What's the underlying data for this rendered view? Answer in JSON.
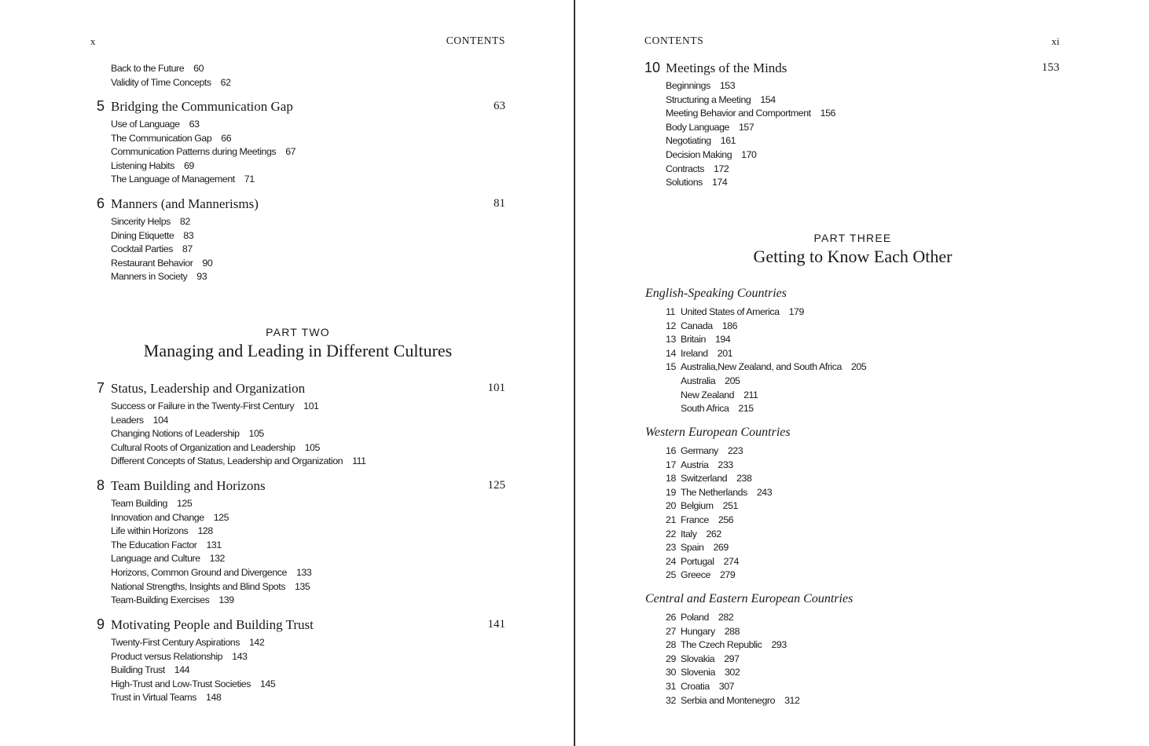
{
  "left_page": {
    "folio": "x",
    "running_head": "CONTENTS",
    "continued_items": [
      {
        "title": "Back to the Future",
        "page": "60"
      },
      {
        "title": "Validity of Time Concepts",
        "page": "62"
      }
    ],
    "chapters_a": [
      {
        "number": "5",
        "title": "Bridging the Communication Gap",
        "page": "63",
        "items": [
          {
            "title": "Use of Language",
            "page": "63"
          },
          {
            "title": "The Communication Gap",
            "page": "66"
          },
          {
            "title": "Communication Patterns during Meetings",
            "page": "67"
          },
          {
            "title": "Listening Habits",
            "page": "69"
          },
          {
            "title": "The Language of Management",
            "page": "71"
          }
        ]
      },
      {
        "number": "6",
        "title": "Manners (and Mannerisms)",
        "page": "81",
        "items": [
          {
            "title": "Sincerity Helps",
            "page": "82"
          },
          {
            "title": "Dining Etiquette",
            "page": "83"
          },
          {
            "title": "Cocktail Parties",
            "page": "87"
          },
          {
            "title": "Restaurant Behavior",
            "page": "90"
          },
          {
            "title": "Manners in Society",
            "page": "93"
          }
        ]
      }
    ],
    "part": {
      "label": "PART TWO",
      "title": "Managing and Leading in Different Cultures"
    },
    "chapters_b": [
      {
        "number": "7",
        "title": "Status, Leadership and Organization",
        "page": "101",
        "items": [
          {
            "title": "Success or Failure in the Twenty-First Century",
            "page": "101"
          },
          {
            "title": "Leaders",
            "page": "104"
          },
          {
            "title": "Changing Notions of Leadership",
            "page": "105"
          },
          {
            "title": "Cultural Roots of Organization and Leadership",
            "page": "105"
          },
          {
            "title": "Different Concepts of Status, Leadership and Organization",
            "page": "111"
          }
        ]
      },
      {
        "number": "8",
        "title": "Team Building and Horizons",
        "page": "125",
        "items": [
          {
            "title": "Team Building",
            "page": "125"
          },
          {
            "title": "Innovation and Change",
            "page": "125"
          },
          {
            "title": "Life within Horizons",
            "page": "128"
          },
          {
            "title": "The Education Factor",
            "page": "131"
          },
          {
            "title": "Language and Culture",
            "page": "132"
          },
          {
            "title": "Horizons, Common Ground and Divergence",
            "page": "133"
          },
          {
            "title": "National Strengths, Insights and Blind Spots",
            "page": "135"
          },
          {
            "title": "Team-Building Exercises",
            "page": "139"
          }
        ]
      },
      {
        "number": "9",
        "title": "Motivating People and Building Trust",
        "page": "141",
        "items": [
          {
            "title": "Twenty-First Century Aspirations",
            "page": "142"
          },
          {
            "title": "Product versus Relationship",
            "page": "143"
          },
          {
            "title": "Building Trust",
            "page": "144"
          },
          {
            "title": "High-Trust and Low-Trust Societies",
            "page": "145"
          },
          {
            "title": "Trust in Virtual Teams",
            "page": "148"
          }
        ]
      }
    ]
  },
  "right_page": {
    "folio": "xi",
    "running_head": "CONTENTS",
    "chapter": {
      "number": "10",
      "title": "Meetings of the Minds",
      "page": "153",
      "items": [
        {
          "title": "Beginnings",
          "page": "153"
        },
        {
          "title": "Structuring a Meeting",
          "page": "154"
        },
        {
          "title": "Meeting Behavior and Comportment",
          "page": "156"
        },
        {
          "title": "Body Language",
          "page": "157"
        },
        {
          "title": "Negotiating",
          "page": "161"
        },
        {
          "title": "Decision Making",
          "page": "170"
        },
        {
          "title": "Contracts",
          "page": "172"
        },
        {
          "title": "Solutions",
          "page": "174"
        }
      ]
    },
    "part": {
      "label": "PART THREE",
      "title": "Getting to Know Each Other"
    },
    "regions": [
      {
        "title": "English-Speaking Countries",
        "items": [
          {
            "number": "11",
            "title": "United States of America",
            "page": "179"
          },
          {
            "number": "12",
            "title": "Canada",
            "page": "186"
          },
          {
            "number": "13",
            "title": "Britain",
            "page": "194"
          },
          {
            "number": "14",
            "title": "Ireland",
            "page": "201"
          },
          {
            "number": "15",
            "title": "Australia,New Zealand, and South Africa",
            "page": "205"
          },
          {
            "number": "",
            "title": "Australia",
            "page": "205"
          },
          {
            "number": "",
            "title": "New Zealand",
            "page": "211"
          },
          {
            "number": "",
            "title": "South Africa",
            "page": "215"
          }
        ]
      },
      {
        "title": "Western European Countries",
        "items": [
          {
            "number": "16",
            "title": "Germany",
            "page": "223"
          },
          {
            "number": "17",
            "title": "Austria",
            "page": "233"
          },
          {
            "number": "18",
            "title": "Switzerland",
            "page": "238"
          },
          {
            "number": "19",
            "title": "The Netherlands",
            "page": "243"
          },
          {
            "number": "20",
            "title": "Belgium",
            "page": "251"
          },
          {
            "number": "21",
            "title": "France",
            "page": "256"
          },
          {
            "number": "22",
            "title": "Italy",
            "page": "262"
          },
          {
            "number": "23",
            "title": "Spain",
            "page": "269"
          },
          {
            "number": "24",
            "title": "Portugal",
            "page": "274"
          },
          {
            "number": "25",
            "title": "Greece",
            "page": "279"
          }
        ]
      },
      {
        "title": "Central and Eastern European Countries",
        "items": [
          {
            "number": "26",
            "title": "Poland",
            "page": "282"
          },
          {
            "number": "27",
            "title": "Hungary",
            "page": "288"
          },
          {
            "number": "28",
            "title": "The Czech Republic",
            "page": "293"
          },
          {
            "number": "29",
            "title": "Slovakia",
            "page": "297"
          },
          {
            "number": "30",
            "title": "Slovenia",
            "page": "302"
          },
          {
            "number": "31",
            "title": "Croatia",
            "page": "307"
          },
          {
            "number": "32",
            "title": "Serbia and Montenegro",
            "page": "312"
          }
        ]
      }
    ]
  }
}
